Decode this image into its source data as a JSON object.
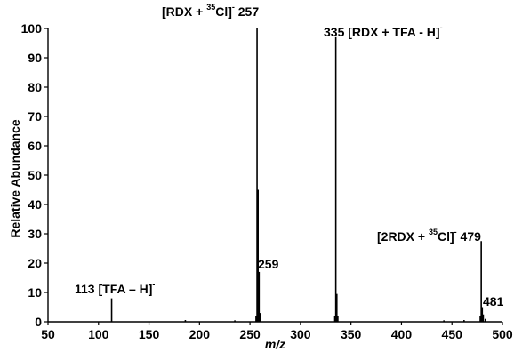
{
  "chart_data": {
    "type": "line",
    "subtype": "mass-spectrum-sticks",
    "xlabel": "m/z",
    "ylabel": "Relative Abundance",
    "xlim": [
      50,
      500
    ],
    "ylim": [
      0,
      100
    ],
    "x_ticks": [
      50,
      100,
      150,
      200,
      250,
      300,
      350,
      400,
      450,
      500
    ],
    "y_ticks": [
      0,
      10,
      20,
      30,
      40,
      50,
      60,
      70,
      80,
      90,
      100
    ],
    "grid": false,
    "series": [
      {
        "x": [
          113,
          186,
          235,
          256,
          257,
          258,
          259,
          260,
          334,
          335,
          336,
          337,
          442,
          462,
          478,
          479,
          480,
          481,
          483
        ],
        "y": [
          8,
          0.6,
          0.5,
          2,
          100,
          45,
          17,
          3,
          2,
          97,
          9.5,
          2,
          0.5,
          0.6,
          2,
          27.5,
          5,
          2.5,
          1
        ]
      }
    ],
    "annotations": [
      {
        "id": "ann-113",
        "x": 113,
        "y": 8,
        "parts": [
          {
            "t": "113 [TFA – H]"
          },
          {
            "t": "-",
            "sup": true
          }
        ]
      },
      {
        "id": "ann-257",
        "x": 257,
        "y": 100,
        "parts": [
          {
            "t": "[RDX + "
          },
          {
            "t": "35",
            "sup": true
          },
          {
            "t": "Cl]"
          },
          {
            "t": "-",
            "sup": true
          },
          {
            "t": " 257"
          }
        ]
      },
      {
        "id": "ann-259",
        "x": 259,
        "y": 17,
        "parts": [
          {
            "t": "259"
          }
        ]
      },
      {
        "id": "ann-335",
        "x": 335,
        "y": 97,
        "parts": [
          {
            "t": "335 [RDX + TFA - H]"
          },
          {
            "t": "-",
            "sup": true
          }
        ]
      },
      {
        "id": "ann-479",
        "x": 479,
        "y": 27.5,
        "parts": [
          {
            "t": "[2RDX + "
          },
          {
            "t": "35",
            "sup": true
          },
          {
            "t": "Cl]"
          },
          {
            "t": "-",
            "sup": true
          },
          {
            "t": " 479"
          }
        ]
      },
      {
        "id": "ann-481",
        "x": 481,
        "y": 2.5,
        "parts": [
          {
            "t": "481"
          }
        ]
      }
    ]
  }
}
